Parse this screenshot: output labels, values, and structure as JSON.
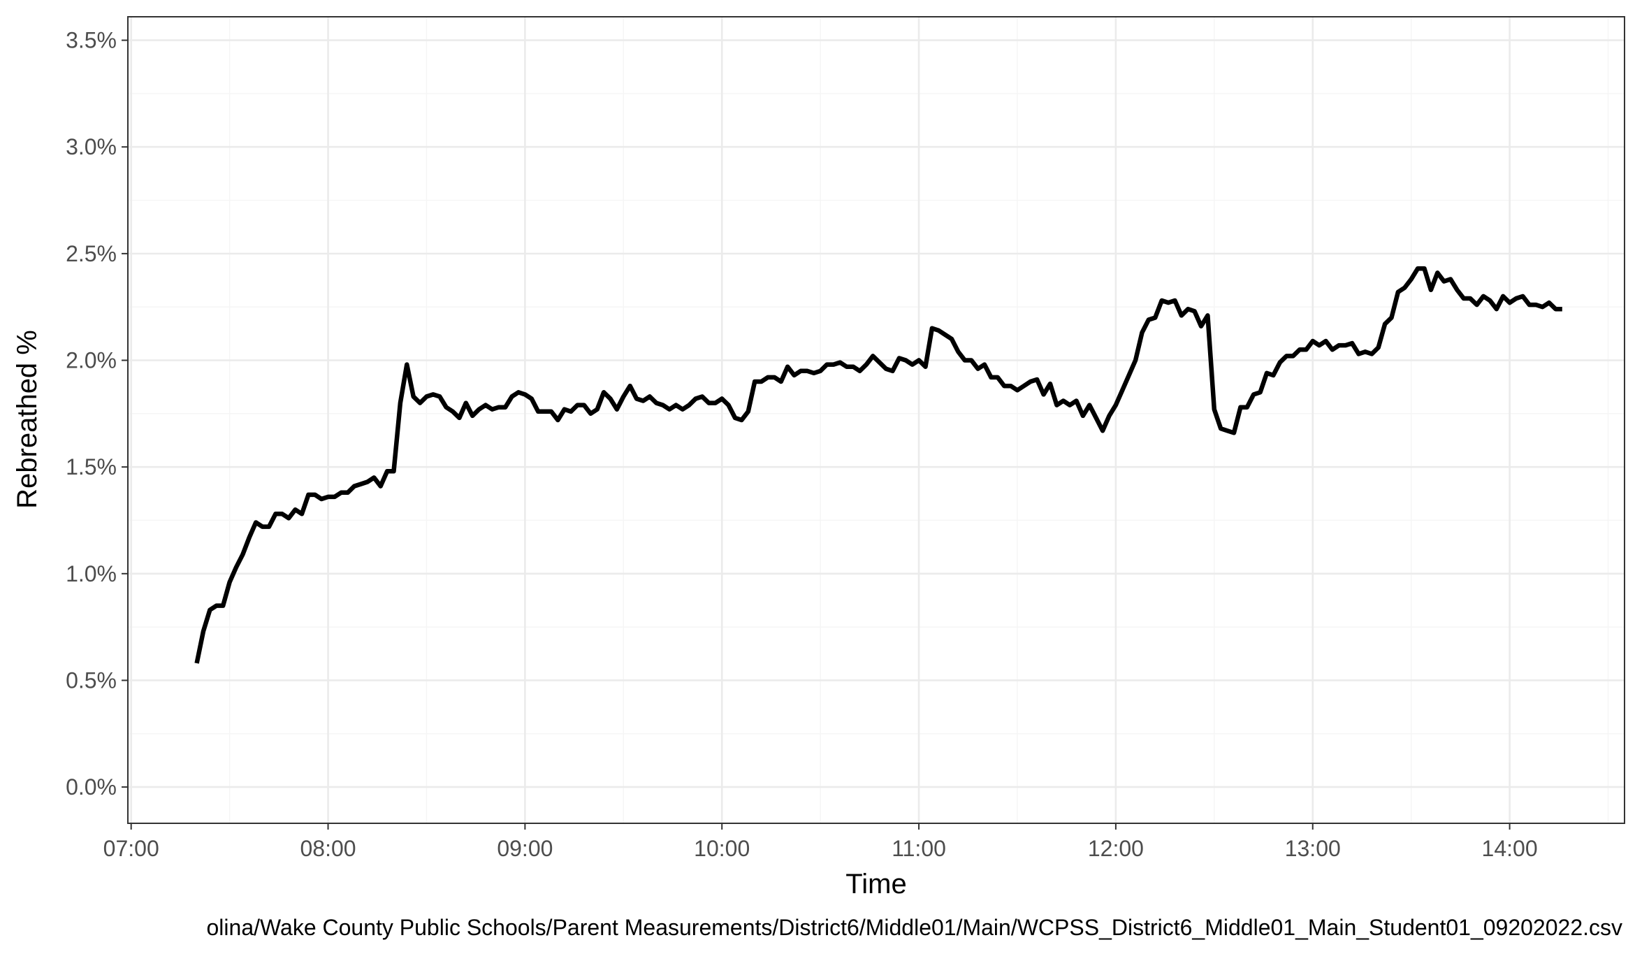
{
  "chart_data": {
    "type": "line",
    "xlabel": "Time",
    "ylabel": "Rebreathed %",
    "caption": "Wake County Public Schools/Parent Measurements/District6/Middle01/Main/WCPSS_District6_Middle01_Main_Student01_09202022.csv",
    "caption_visible": "olina/Wake County Public Schools/Parent Measurements/District6/Middle01/Main/WCPSS_District6_Middle01_Main_Student01_09202022.csv",
    "x_ticks": [
      "07:00",
      "08:00",
      "09:00",
      "10:00",
      "11:00",
      "12:00",
      "13:00",
      "14:00"
    ],
    "y_ticks": [
      "0.0%",
      "0.5%",
      "1.0%",
      "1.5%",
      "2.0%",
      "2.5%",
      "3.0%",
      "3.5%"
    ],
    "xlim": [
      "06:59",
      "14:35"
    ],
    "ylim": [
      -0.17,
      3.61
    ],
    "grid": true,
    "colors": {
      "line": "#000000",
      "grid_major": "#ebebeb",
      "grid_minor": "#f5f5f5",
      "panel_border": "#333333"
    },
    "series": [
      {
        "x": [
          "07:20",
          "07:22",
          "07:24",
          "07:26",
          "07:28",
          "07:30",
          "07:32",
          "07:34",
          "07:36",
          "07:38",
          "07:40",
          "07:42",
          "07:44",
          "07:46",
          "07:48",
          "07:50",
          "07:52",
          "07:54",
          "07:56",
          "07:58",
          "08:00",
          "08:02",
          "08:04",
          "08:06",
          "08:08",
          "08:10",
          "08:12",
          "08:14",
          "08:16",
          "08:18",
          "08:20",
          "08:22",
          "08:24",
          "08:26",
          "08:28",
          "08:30",
          "08:32",
          "08:34",
          "08:36",
          "08:38",
          "08:40",
          "08:42",
          "08:44",
          "08:46",
          "08:48",
          "08:50",
          "08:52",
          "08:54",
          "08:56",
          "08:58",
          "09:00",
          "09:02",
          "09:04",
          "09:06",
          "09:08",
          "09:10",
          "09:12",
          "09:14",
          "09:16",
          "09:18",
          "09:20",
          "09:22",
          "09:24",
          "09:26",
          "09:28",
          "09:30",
          "09:32",
          "09:34",
          "09:36",
          "09:38",
          "09:40",
          "09:42",
          "09:44",
          "09:46",
          "09:48",
          "09:50",
          "09:52",
          "09:54",
          "09:56",
          "09:58",
          "10:00",
          "10:02",
          "10:04",
          "10:06",
          "10:08",
          "10:10",
          "10:12",
          "10:14",
          "10:16",
          "10:18",
          "10:20",
          "10:22",
          "10:24",
          "10:26",
          "10:28",
          "10:30",
          "10:32",
          "10:34",
          "10:36",
          "10:38",
          "10:40",
          "10:42",
          "10:44",
          "10:46",
          "10:48",
          "10:50",
          "10:52",
          "10:54",
          "10:56",
          "10:58",
          "11:00",
          "11:02",
          "11:04",
          "11:06",
          "11:08",
          "11:10",
          "11:12",
          "11:14",
          "11:16",
          "11:18",
          "11:20",
          "11:22",
          "11:24",
          "11:26",
          "11:28",
          "11:30",
          "11:32",
          "11:34",
          "11:36",
          "11:38",
          "11:40",
          "11:42",
          "11:44",
          "11:46",
          "11:48",
          "11:50",
          "11:52",
          "11:54",
          "11:56",
          "11:58",
          "12:00",
          "12:02",
          "12:04",
          "12:06",
          "12:08",
          "12:10",
          "12:12",
          "12:14",
          "12:16",
          "12:18",
          "12:20",
          "12:22",
          "12:24",
          "12:26",
          "12:28",
          "12:30",
          "12:32",
          "12:34",
          "12:36",
          "12:38",
          "12:40",
          "12:42",
          "12:44",
          "12:46",
          "12:48",
          "12:50",
          "12:52",
          "12:54",
          "12:56",
          "12:58",
          "13:00",
          "13:02",
          "13:04",
          "13:06",
          "13:08",
          "13:10",
          "13:12",
          "13:14",
          "13:16",
          "13:18",
          "13:20",
          "13:22",
          "13:24",
          "13:26",
          "13:28",
          "13:30",
          "13:32",
          "13:34",
          "13:36",
          "13:38",
          "13:40",
          "13:42",
          "13:44",
          "13:46",
          "13:48",
          "13:50",
          "13:52",
          "13:54",
          "13:56",
          "13:58",
          "14:00",
          "14:02",
          "14:04",
          "14:06",
          "14:08",
          "14:10",
          "14:12",
          "14:14",
          "14:16"
        ],
        "y": [
          0.58,
          0.73,
          0.83,
          0.85,
          0.85,
          0.96,
          1.03,
          1.09,
          1.17,
          1.24,
          1.22,
          1.22,
          1.28,
          1.28,
          1.26,
          1.3,
          1.28,
          1.37,
          1.37,
          1.35,
          1.36,
          1.36,
          1.38,
          1.38,
          1.41,
          1.42,
          1.43,
          1.45,
          1.41,
          1.48,
          1.48,
          1.8,
          1.98,
          1.83,
          1.8,
          1.83,
          1.84,
          1.83,
          1.78,
          1.76,
          1.73,
          1.8,
          1.74,
          1.77,
          1.79,
          1.77,
          1.78,
          1.78,
          1.83,
          1.85,
          1.84,
          1.82,
          1.76,
          1.76,
          1.76,
          1.72,
          1.77,
          1.76,
          1.79,
          1.79,
          1.75,
          1.77,
          1.85,
          1.82,
          1.77,
          1.83,
          1.88,
          1.82,
          1.81,
          1.83,
          1.8,
          1.79,
          1.77,
          1.79,
          1.77,
          1.79,
          1.82,
          1.83,
          1.8,
          1.8,
          1.82,
          1.79,
          1.73,
          1.72,
          1.76,
          1.9,
          1.9,
          1.92,
          1.92,
          1.9,
          1.97,
          1.93,
          1.95,
          1.95,
          1.94,
          1.95,
          1.98,
          1.98,
          1.99,
          1.97,
          1.97,
          1.95,
          1.98,
          2.02,
          1.99,
          1.96,
          1.95,
          2.01,
          2.0,
          1.98,
          2.0,
          1.97,
          2.15,
          2.14,
          2.12,
          2.1,
          2.04,
          2.0,
          2.0,
          1.96,
          1.98,
          1.92,
          1.92,
          1.88,
          1.88,
          1.86,
          1.88,
          1.9,
          1.91,
          1.84,
          1.89,
          1.79,
          1.81,
          1.79,
          1.81,
          1.74,
          1.79,
          1.73,
          1.67,
          1.74,
          1.79,
          1.86,
          1.93,
          2.0,
          2.13,
          2.19,
          2.2,
          2.28,
          2.27,
          2.28,
          2.21,
          2.24,
          2.23,
          2.16,
          2.21,
          1.77,
          1.68,
          1.67,
          1.66,
          1.78,
          1.78,
          1.84,
          1.85,
          1.94,
          1.93,
          1.99,
          2.02,
          2.02,
          2.05,
          2.05,
          2.09,
          2.07,
          2.09,
          2.05,
          2.07,
          2.07,
          2.08,
          2.03,
          2.04,
          2.03,
          2.06,
          2.17,
          2.2,
          2.32,
          2.34,
          2.38,
          2.43,
          2.43,
          2.33,
          2.41,
          2.37,
          2.38,
          2.33,
          2.29,
          2.29,
          2.26,
          2.3,
          2.28,
          2.24,
          2.3,
          2.27,
          2.29,
          2.3,
          2.26,
          2.26,
          2.25,
          2.27,
          2.24,
          2.24
        ]
      }
    ]
  }
}
